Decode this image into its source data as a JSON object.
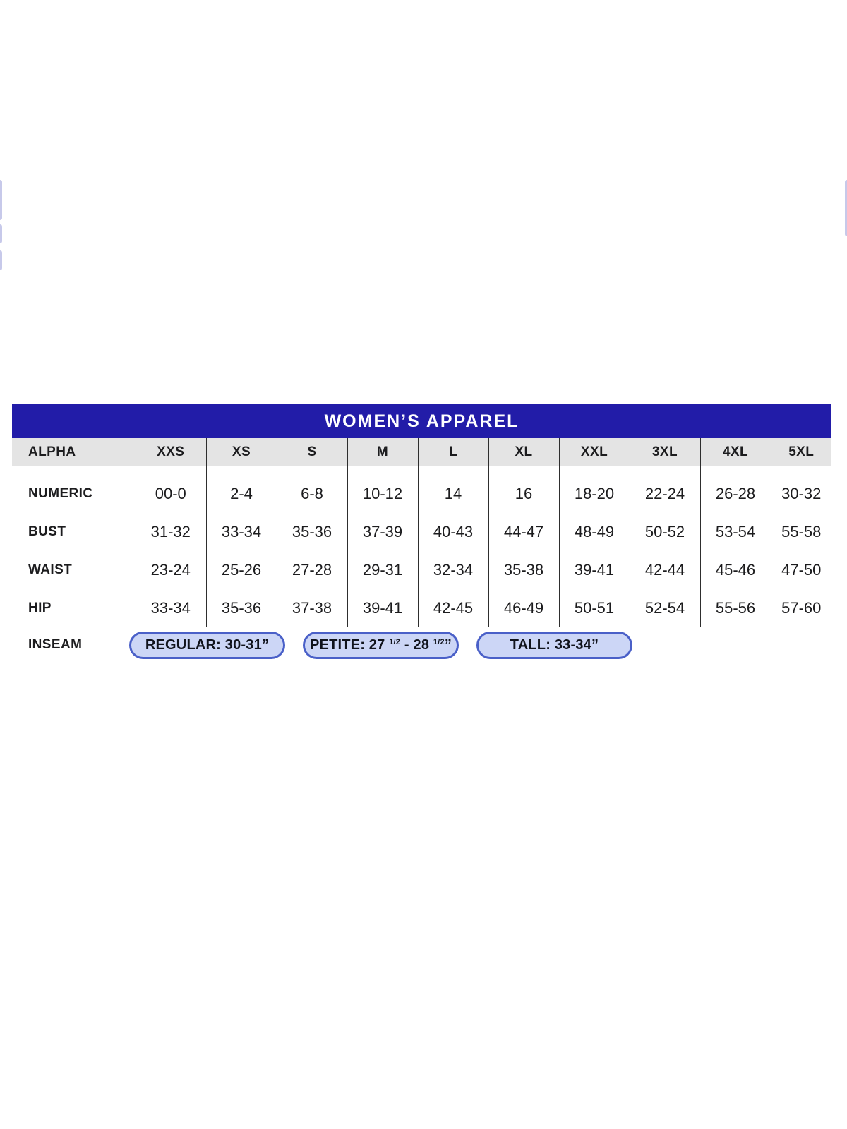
{
  "size_chart": {
    "title": "WOMEN’S APPAREL",
    "columns": [
      "ALPHA",
      "XXS",
      "XS",
      "S",
      "M",
      "L",
      "XL",
      "XXL",
      "3XL",
      "4XL",
      "5XL"
    ],
    "rows": [
      {
        "label": "NUMERIC",
        "values": [
          "00-0",
          "2-4",
          "6-8",
          "10-12",
          "14",
          "16",
          "18-20",
          "22-24",
          "26-28",
          "30-32"
        ]
      },
      {
        "label": "BUST",
        "values": [
          "31-32",
          "33-34",
          "35-36",
          "37-39",
          "40-43",
          "44-47",
          "48-49",
          "50-52",
          "53-54",
          "55-58"
        ]
      },
      {
        "label": "WAIST",
        "values": [
          "23-24",
          "25-26",
          "27-28",
          "29-31",
          "32-34",
          "35-38",
          "39-41",
          "42-44",
          "45-46",
          "47-50"
        ]
      },
      {
        "label": "HIP",
        "values": [
          "33-34",
          "35-36",
          "37-38",
          "39-41",
          "42-45",
          "46-49",
          "50-51",
          "52-54",
          "55-56",
          "57-60"
        ]
      }
    ],
    "inseam": {
      "label": "INSEAM",
      "pills": [
        {
          "name": "regular",
          "parts": [
            {
              "text": "REGULAR: 30-31”"
            }
          ]
        },
        {
          "name": "petite",
          "parts": [
            {
              "text": "PETITE: 27 "
            },
            {
              "text": "1/2",
              "sup": true
            },
            {
              "text": " - 28 "
            },
            {
              "text": "1/2",
              "sup": true
            },
            {
              "text": "”"
            }
          ]
        },
        {
          "name": "tall",
          "parts": [
            {
              "text": "TALL: 33-34”"
            }
          ]
        }
      ]
    }
  },
  "colors": {
    "title_bg": "#221CA8",
    "title_text": "#FFFFFF",
    "header_row_bg": "#E4E4E4",
    "body_text": "#1C1C1E",
    "divider": "#2E2E2E",
    "pill_bg": "#CCD6F6",
    "pill_border": "#4A60C8",
    "pill_text": "#10131C",
    "edge_fragment": "#C7C9EA",
    "page_bg": "#FFFFFF"
  },
  "edge_fragments": [
    {
      "name": "left-fragment-1"
    },
    {
      "name": "left-fragment-2"
    },
    {
      "name": "left-fragment-3"
    },
    {
      "name": "right-fragment-1"
    }
  ]
}
